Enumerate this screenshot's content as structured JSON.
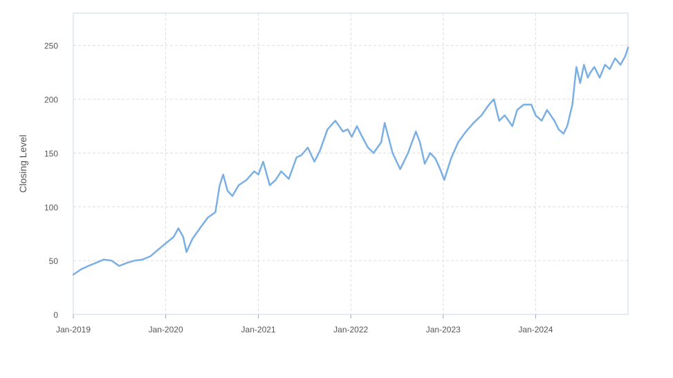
{
  "chart_data": {
    "type": "line",
    "title": "",
    "xlabel": "",
    "ylabel": "Closing Level",
    "x_range": [
      "2019-01-01",
      "2024-12-31"
    ],
    "ylim": [
      0,
      280
    ],
    "y_ticks": [
      0,
      50,
      100,
      150,
      200,
      250
    ],
    "y_tick_labels": [
      "0",
      "50",
      "100",
      "150",
      "200",
      "250"
    ],
    "x_ticks": [
      "2019-01-01",
      "2020-01-01",
      "2021-01-01",
      "2022-01-01",
      "2023-01-01",
      "2024-01-01"
    ],
    "x_tick_labels": [
      "Jan-2019",
      "Jan-2020",
      "Jan-2021",
      "Jan-2022",
      "Jan-2023",
      "Jan-2024"
    ],
    "grid": true,
    "legend": "none",
    "line_color": "#7aafe3",
    "series": [
      {
        "x": [
          "2019-01-01",
          "2019-02-01",
          "2019-03-01",
          "2019-04-01",
          "2019-05-01",
          "2019-06-01",
          "2019-07-01",
          "2019-08-01",
          "2019-09-01",
          "2019-10-01",
          "2019-11-01",
          "2019-12-01",
          "2020-01-01",
          "2020-02-01",
          "2020-02-20",
          "2020-03-10",
          "2020-03-23",
          "2020-04-15",
          "2020-05-15",
          "2020-06-15",
          "2020-07-15",
          "2020-08-01",
          "2020-08-15",
          "2020-09-01",
          "2020-09-20",
          "2020-10-15",
          "2020-11-15",
          "2020-12-15",
          "2021-01-01",
          "2021-01-20",
          "2021-02-15",
          "2021-03-10",
          "2021-04-01",
          "2021-05-01",
          "2021-06-01",
          "2021-06-20",
          "2021-07-15",
          "2021-08-10",
          "2021-09-01",
          "2021-10-01",
          "2021-11-01",
          "2021-12-01",
          "2021-12-20",
          "2022-01-05",
          "2022-01-25",
          "2022-02-15",
          "2022-03-10",
          "2022-04-01",
          "2022-05-01",
          "2022-05-15",
          "2022-06-15",
          "2022-07-15",
          "2022-08-15",
          "2022-09-15",
          "2022-10-01",
          "2022-10-20",
          "2022-11-10",
          "2022-12-01",
          "2022-12-20",
          "2023-01-05",
          "2023-02-01",
          "2023-03-01",
          "2023-04-01",
          "2023-05-01",
          "2023-06-01",
          "2023-07-01",
          "2023-07-20",
          "2023-08-10",
          "2023-09-01",
          "2023-10-01",
          "2023-10-20",
          "2023-11-15",
          "2023-12-15",
          "2024-01-01",
          "2024-01-25",
          "2024-02-15",
          "2024-03-15",
          "2024-04-01",
          "2024-04-20",
          "2024-05-05",
          "2024-05-25",
          "2024-06-10",
          "2024-06-25",
          "2024-07-10",
          "2024-07-25",
          "2024-08-05",
          "2024-08-20",
          "2024-09-10",
          "2024-10-01",
          "2024-10-20",
          "2024-11-10",
          "2024-12-01",
          "2024-12-20",
          "2024-12-31"
        ],
        "y": [
          37,
          42,
          45,
          48,
          51,
          50,
          45,
          48,
          50,
          51,
          54,
          60,
          66,
          72,
          80,
          72,
          58,
          70,
          80,
          90,
          95,
          120,
          130,
          115,
          110,
          120,
          125,
          133,
          130,
          142,
          120,
          125,
          133,
          126,
          146,
          148,
          155,
          142,
          152,
          172,
          180,
          170,
          172,
          165,
          175,
          165,
          155,
          150,
          160,
          178,
          150,
          135,
          150,
          170,
          160,
          140,
          150,
          145,
          135,
          125,
          145,
          160,
          170,
          178,
          185,
          195,
          200,
          180,
          185,
          175,
          190,
          195,
          195,
          185,
          180,
          190,
          180,
          172,
          168,
          175,
          195,
          230,
          215,
          232,
          220,
          225,
          230,
          220,
          232,
          228,
          238,
          232,
          240,
          248
        ]
      }
    ]
  }
}
